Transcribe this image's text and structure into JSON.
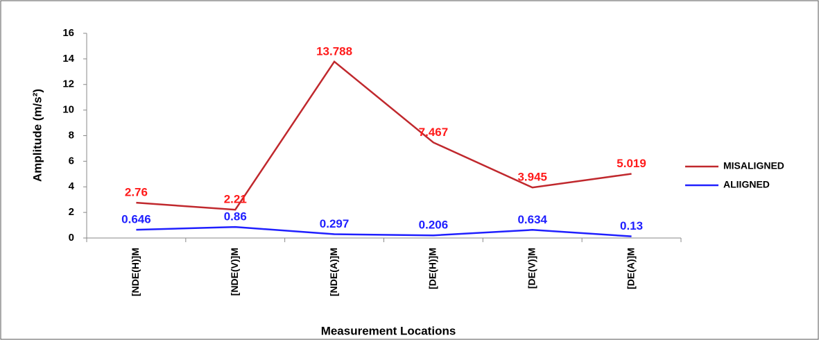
{
  "chart_data": {
    "type": "line",
    "x_label": "Measurement   Locations",
    "y_label": "Amplitude (m/s²)",
    "categories": [
      "[NDE(H)]M",
      "[NDE(V)]M",
      "[NDE(A)]M",
      "[DE(H)]M",
      "[DE(V)]M",
      "[DE(A)]M"
    ],
    "series": [
      {
        "name": "MISALIGNED",
        "color": "#c0282d",
        "label_color": "#ff1a1a",
        "values": [
          2.76,
          2.21,
          13.788,
          7.467,
          3.945,
          5.019
        ]
      },
      {
        "name": "ALIIGNED",
        "color": "#1f1fff",
        "label_color": "#1f1fff",
        "values": [
          0.646,
          0.86,
          0.297,
          0.206,
          0.634,
          0.13
        ]
      }
    ],
    "ylim": [
      0,
      16
    ],
    "yticks": [
      0,
      2,
      4,
      6,
      8,
      10,
      12,
      14,
      16
    ],
    "grid": false,
    "legend": "right"
  }
}
